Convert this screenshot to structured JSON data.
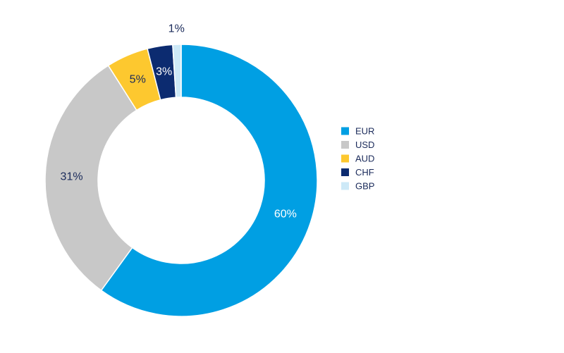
{
  "chart_data": {
    "type": "pie",
    "variant": "donut",
    "title": "",
    "legend_position": "right",
    "slices": [
      {
        "label": "EUR",
        "value": 60,
        "display": "60%",
        "color": "#009fe3",
        "label_color": "#ffffff"
      },
      {
        "label": "USD",
        "value": 31,
        "display": "31%",
        "color": "#c8c8c8",
        "label_color": "#1a2a5a"
      },
      {
        "label": "AUD",
        "value": 5,
        "display": "5%",
        "color": "#fdc82f",
        "label_color": "#1a2a5a"
      },
      {
        "label": "CHF",
        "value": 3,
        "display": "3%",
        "color": "#0c2b70",
        "label_color": "#ffffff"
      },
      {
        "label": "GBP",
        "value": 1,
        "display": "1%",
        "color": "#cde9f7",
        "label_color": "#1a2a5a"
      }
    ]
  }
}
